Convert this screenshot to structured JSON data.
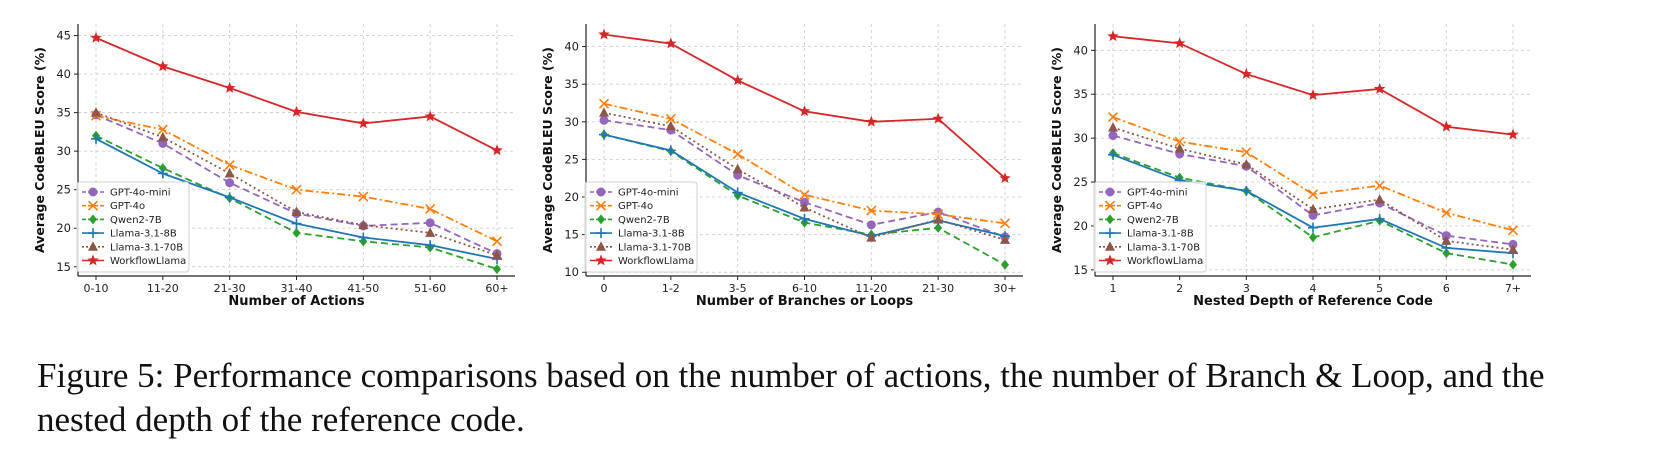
{
  "caption": "Figure 5: Performance comparisons based on the number of actions, the number of Branch & Loop, and the nested depth of the reference code.",
  "series_styles": [
    {
      "name": "GPT-4o-mini",
      "color": "#9467bd",
      "dash": "dashed",
      "marker": "circle"
    },
    {
      "name": "GPT-4o",
      "color": "#ff7f0e",
      "dash": "dashdot",
      "marker": "x"
    },
    {
      "name": "Qwen2-7B",
      "color": "#2ca02c",
      "dash": "dashed",
      "marker": "diamond"
    },
    {
      "name": "Llama-3.1-8B",
      "color": "#1f77b4",
      "dash": "solid",
      "marker": "plus"
    },
    {
      "name": "Llama-3.1-70B",
      "color": "#8c564b",
      "dash": "dotted",
      "marker": "triangle"
    },
    {
      "name": "WorkflowLlama",
      "color": "#d62728",
      "dash": "solid",
      "marker": "star"
    }
  ],
  "chart_data": [
    {
      "type": "line",
      "xlabel": "Number of Actions",
      "ylabel": "Average CodeBLEU Score (%)",
      "categories": [
        "0-10",
        "11-20",
        "21-30",
        "31-40",
        "41-50",
        "51-60",
        "60+"
      ],
      "ylim": [
        13.8,
        46.5
      ],
      "yticks": [
        15,
        20,
        25,
        30,
        35,
        40,
        45
      ],
      "grid": true,
      "legend": "lower-left",
      "series": [
        {
          "name": "GPT-4o-mini",
          "values": [
            34.7,
            31.0,
            25.9,
            21.9,
            20.3,
            20.7,
            16.7
          ]
        },
        {
          "name": "GPT-4o",
          "values": [
            34.6,
            32.8,
            28.2,
            25.0,
            24.1,
            22.5,
            18.3
          ]
        },
        {
          "name": "Qwen2-7B",
          "values": [
            32.0,
            27.8,
            23.9,
            19.4,
            18.3,
            17.5,
            14.7
          ]
        },
        {
          "name": "Llama-3.1-8B",
          "values": [
            31.6,
            27.1,
            24.0,
            20.6,
            18.8,
            17.8,
            16.0
          ]
        },
        {
          "name": "Llama-3.1-70B",
          "values": [
            35.0,
            31.8,
            27.1,
            22.1,
            20.4,
            19.4,
            16.5
          ]
        },
        {
          "name": "WorkflowLlama",
          "values": [
            44.7,
            41.0,
            38.2,
            35.1,
            33.6,
            34.5,
            30.1
          ]
        }
      ]
    },
    {
      "type": "line",
      "xlabel": "Number of Branches or Loops",
      "ylabel": "Average CodeBLEU Score (%)",
      "categories": [
        "0",
        "1-2",
        "3-5",
        "6-10",
        "11-20",
        "21-30",
        "30+"
      ],
      "ylim": [
        9.5,
        43.0
      ],
      "yticks": [
        10,
        15,
        20,
        25,
        30,
        35,
        40
      ],
      "grid": true,
      "legend": "lower-left",
      "series": [
        {
          "name": "GPT-4o-mini",
          "values": [
            30.2,
            28.9,
            22.9,
            19.3,
            16.3,
            18.0,
            14.7
          ]
        },
        {
          "name": "GPT-4o",
          "values": [
            32.4,
            30.4,
            25.7,
            20.3,
            18.2,
            17.7,
            16.5
          ]
        },
        {
          "name": "Qwen2-7B",
          "values": [
            28.3,
            26.1,
            20.2,
            16.6,
            15.0,
            15.9,
            11.0
          ]
        },
        {
          "name": "Llama-3.1-8B",
          "values": [
            28.3,
            26.2,
            20.6,
            17.1,
            14.8,
            16.9,
            14.8
          ]
        },
        {
          "name": "Llama-3.1-70B",
          "values": [
            31.2,
            29.4,
            23.7,
            18.6,
            14.6,
            17.0,
            14.3
          ]
        },
        {
          "name": "WorkflowLlama",
          "values": [
            41.6,
            40.4,
            35.5,
            31.4,
            30.0,
            30.4,
            22.5
          ]
        }
      ]
    },
    {
      "type": "line",
      "xlabel": "Nested Depth of Reference Code",
      "ylabel": "Average CodeBLEU Score (%)",
      "categories": [
        "1",
        "2",
        "3",
        "4",
        "5",
        "6",
        "7+"
      ],
      "ylim": [
        14.3,
        43.0
      ],
      "yticks": [
        15,
        20,
        25,
        30,
        35,
        40
      ],
      "grid": true,
      "legend": "lower-left",
      "series": [
        {
          "name": "GPT-4o-mini",
          "values": [
            30.3,
            28.2,
            26.8,
            21.2,
            22.6,
            18.9,
            17.9
          ]
        },
        {
          "name": "GPT-4o",
          "values": [
            32.4,
            29.6,
            28.4,
            23.6,
            24.6,
            21.5,
            19.5
          ]
        },
        {
          "name": "Qwen2-7B",
          "values": [
            28.3,
            25.5,
            24.0,
            18.7,
            20.6,
            16.9,
            15.6
          ]
        },
        {
          "name": "Llama-3.1-8B",
          "values": [
            28.1,
            25.2,
            24.0,
            19.8,
            20.8,
            17.5,
            16.9
          ]
        },
        {
          "name": "Llama-3.1-70B",
          "values": [
            31.2,
            28.8,
            27.0,
            21.9,
            23.0,
            18.3,
            17.3
          ]
        },
        {
          "name": "WorkflowLlama",
          "values": [
            41.6,
            40.8,
            37.3,
            34.9,
            35.6,
            31.3,
            30.4
          ]
        }
      ]
    }
  ]
}
